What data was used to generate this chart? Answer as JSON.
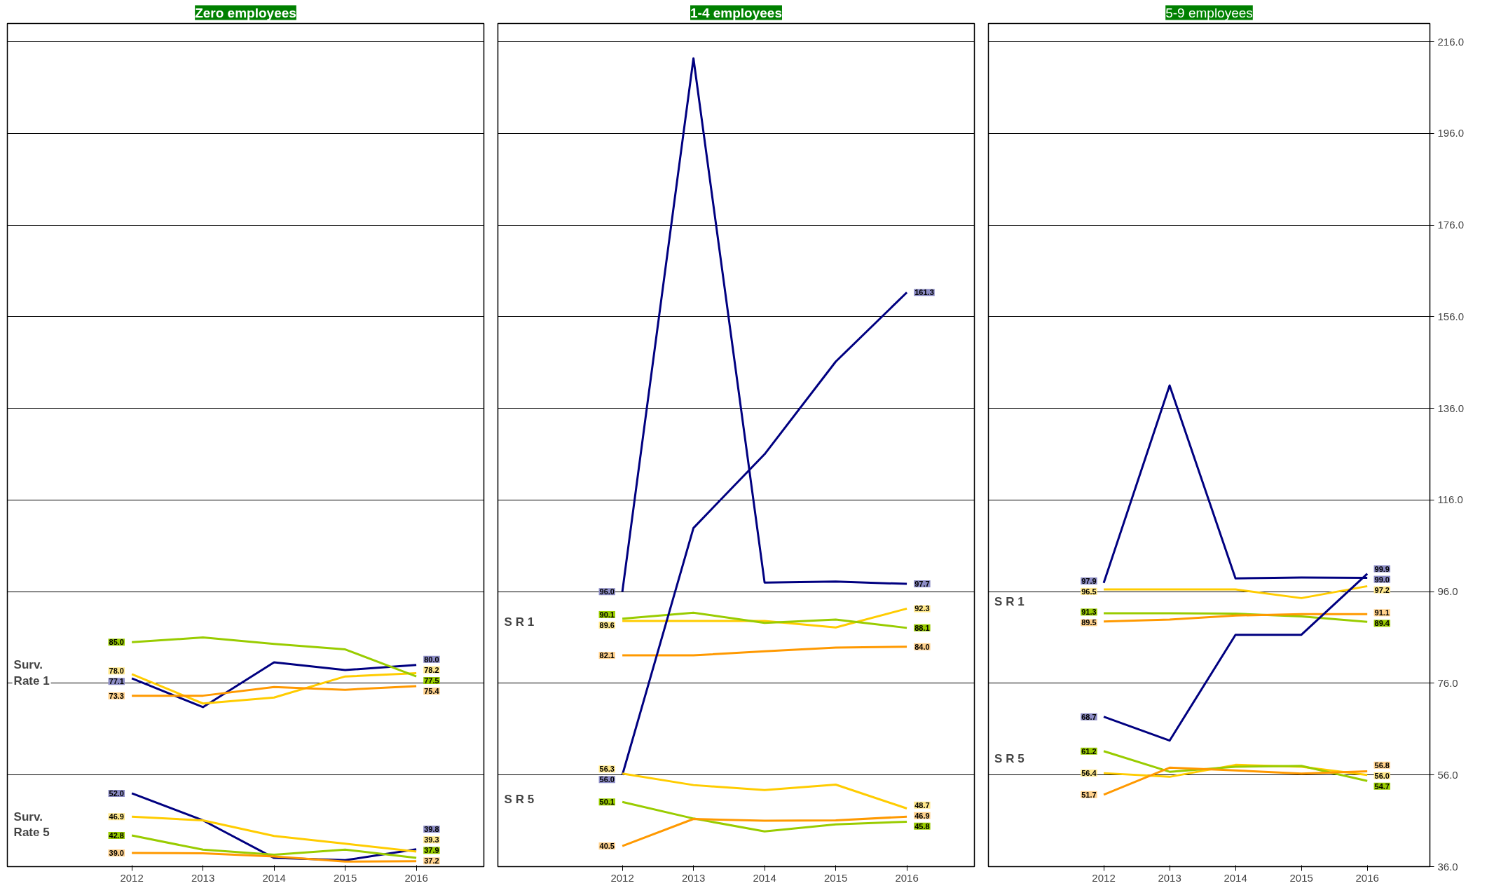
{
  "chart_data": [
    {
      "type": "line",
      "title": "Zero employees",
      "categories": [
        "2012",
        "2013",
        "2014",
        "2015",
        "2016"
      ],
      "ylim": [
        36,
        220
      ],
      "yticks": [
        36,
        56,
        76,
        96,
        116,
        136,
        156,
        176,
        196,
        216
      ],
      "tick_labels": "x",
      "grid": "y",
      "annotations": [
        "Surv. Rate 1",
        "Surv. Rate 5"
      ],
      "series": [
        {
          "color": "#000080",
          "values": [
            77.1,
            70.8,
            80.6,
            78.9,
            80.0
          ],
          "value_labels": [
            "77.1",
            null,
            null,
            null,
            "80.0"
          ]
        },
        {
          "color": "#ffcc00",
          "values": [
            78.0,
            71.6,
            72.9,
            77.5,
            78.2
          ],
          "value_labels": [
            "78.0",
            null,
            null,
            null,
            "78.2"
          ]
        },
        {
          "color": "#99cc00",
          "values": [
            85.0,
            86.0,
            84.6,
            83.4,
            77.5
          ],
          "value_labels": [
            "85.0",
            null,
            null,
            null,
            "77.5"
          ]
        },
        {
          "color": "#ff9900",
          "values": [
            73.3,
            73.3,
            75.2,
            74.6,
            75.4
          ],
          "value_labels": [
            "73.3",
            null,
            null,
            null,
            "75.4"
          ]
        },
        {
          "color": "#000080",
          "values": [
            52.0,
            46.1,
            37.9,
            37.4,
            39.8
          ],
          "value_labels": [
            "52.0",
            null,
            null,
            null,
            "39.8"
          ]
        },
        {
          "color": "#ffcc00",
          "values": [
            46.9,
            46.1,
            42.7,
            41.0,
            39.3
          ],
          "value_labels": [
            "46.9",
            null,
            null,
            null,
            "39.3"
          ]
        },
        {
          "color": "#99cc00",
          "values": [
            42.8,
            39.7,
            38.6,
            39.7,
            37.9
          ],
          "value_labels": [
            "42.8",
            null,
            null,
            null,
            "37.9"
          ]
        },
        {
          "color": "#ff9900",
          "values": [
            39.0,
            38.9,
            38.2,
            37.1,
            37.2
          ],
          "value_labels": [
            "39.0",
            null,
            null,
            null,
            "37.2"
          ]
        }
      ]
    },
    {
      "type": "line",
      "title": "1-4 employees",
      "categories": [
        "2012",
        "2013",
        "2014",
        "2015",
        "2016"
      ],
      "ylim": [
        36,
        220
      ],
      "yticks": [
        36,
        56,
        76,
        96,
        116,
        136,
        156,
        176,
        196,
        216
      ],
      "tick_labels": "x",
      "grid": "y",
      "annotations": [
        "S R 1",
        "S R 5"
      ],
      "series": [
        {
          "color": "#000080",
          "values": [
            96.0,
            212.4,
            98.0,
            98.2,
            97.7
          ],
          "value_labels": [
            "96.0",
            null,
            null,
            null,
            "97.7"
          ]
        },
        {
          "color": "#ffcc00",
          "values": [
            89.6,
            89.6,
            89.6,
            88.2,
            92.3
          ],
          "value_labels": [
            "89.6",
            null,
            null,
            null,
            "92.3"
          ]
        },
        {
          "color": "#99cc00",
          "values": [
            90.1,
            91.4,
            89.2,
            89.9,
            88.1
          ],
          "value_labels": [
            "90.1",
            null,
            null,
            null,
            "88.1"
          ]
        },
        {
          "color": "#ff9900",
          "values": [
            82.1,
            82.1,
            83.0,
            83.8,
            84.0
          ],
          "value_labels": [
            "82.1",
            null,
            null,
            null,
            "84.0"
          ]
        },
        {
          "color": "#000080",
          "values": [
            56.0,
            109.9,
            126.0,
            146.2,
            161.3
          ],
          "value_labels": [
            "56.0",
            null,
            null,
            null,
            "161.3"
          ]
        },
        {
          "color": "#ffcc00",
          "values": [
            56.3,
            53.8,
            52.7,
            53.9,
            48.7
          ],
          "value_labels": [
            "56.3",
            null,
            null,
            null,
            "48.7"
          ]
        },
        {
          "color": "#99cc00",
          "values": [
            50.1,
            46.5,
            43.7,
            45.2,
            45.8
          ],
          "value_labels": [
            "50.1",
            null,
            null,
            null,
            "45.8"
          ]
        },
        {
          "color": "#ff9900",
          "values": [
            40.5,
            46.4,
            46.0,
            46.1,
            46.9
          ],
          "value_labels": [
            "40.5",
            null,
            null,
            null,
            "46.9"
          ]
        }
      ]
    },
    {
      "type": "line",
      "title": "5-9 employees",
      "categories": [
        "2012",
        "2013",
        "2014",
        "2015",
        "2016"
      ],
      "ylim": [
        36,
        220
      ],
      "yticks": [
        {
          "value": 36,
          "label": "36.0"
        },
        {
          "value": 56,
          "label": "56.0"
        },
        {
          "value": 76,
          "label": "76.0"
        },
        {
          "value": 96,
          "label": "96.0"
        },
        {
          "value": 116,
          "label": "116.0"
        },
        {
          "value": 136,
          "label": "136.0"
        },
        {
          "value": 156,
          "label": "156.0"
        },
        {
          "value": 176,
          "label": "176.0"
        },
        {
          "value": 196,
          "label": "196.0"
        },
        {
          "value": 216,
          "label": "216.0"
        }
      ],
      "grid": "y",
      "annotations": [
        "S R 1",
        "S R 5"
      ],
      "series": [
        {
          "color": "#000080",
          "values": [
            97.9,
            141.0,
            98.9,
            99.1,
            99.0
          ],
          "value_labels": [
            "97.9",
            null,
            null,
            null,
            "99.0"
          ]
        },
        {
          "color": "#ffcc00",
          "values": [
            96.5,
            96.5,
            96.5,
            94.6,
            97.2
          ],
          "value_labels": [
            "96.5",
            null,
            null,
            null,
            "97.2"
          ]
        },
        {
          "color": "#99cc00",
          "values": [
            91.3,
            91.3,
            91.2,
            90.6,
            89.4
          ],
          "value_labels": [
            "91.3",
            null,
            null,
            null,
            "89.4"
          ]
        },
        {
          "color": "#ff9900",
          "values": [
            89.5,
            89.9,
            90.8,
            91.1,
            91.1
          ],
          "value_labels": [
            "89.5",
            null,
            null,
            null,
            "91.1"
          ]
        },
        {
          "color": "#000080",
          "values": [
            68.7,
            63.5,
            86.6,
            86.6,
            99.9
          ],
          "value_labels": [
            "68.7",
            null,
            null,
            null,
            "99.9"
          ]
        },
        {
          "color": "#ffcc00",
          "values": [
            56.4,
            55.6,
            58.2,
            57.8,
            56.0
          ],
          "value_labels": [
            "56.4",
            null,
            null,
            null,
            "56.0"
          ]
        },
        {
          "color": "#99cc00",
          "values": [
            61.2,
            56.7,
            57.8,
            58.0,
            54.7
          ],
          "value_labels": [
            "61.2",
            null,
            null,
            null,
            "54.7"
          ]
        },
        {
          "color": "#ff9900",
          "values": [
            51.7,
            57.6,
            57.0,
            56.3,
            56.8
          ],
          "value_labels": [
            "51.7",
            null,
            null,
            null,
            "56.8"
          ]
        }
      ]
    }
  ]
}
